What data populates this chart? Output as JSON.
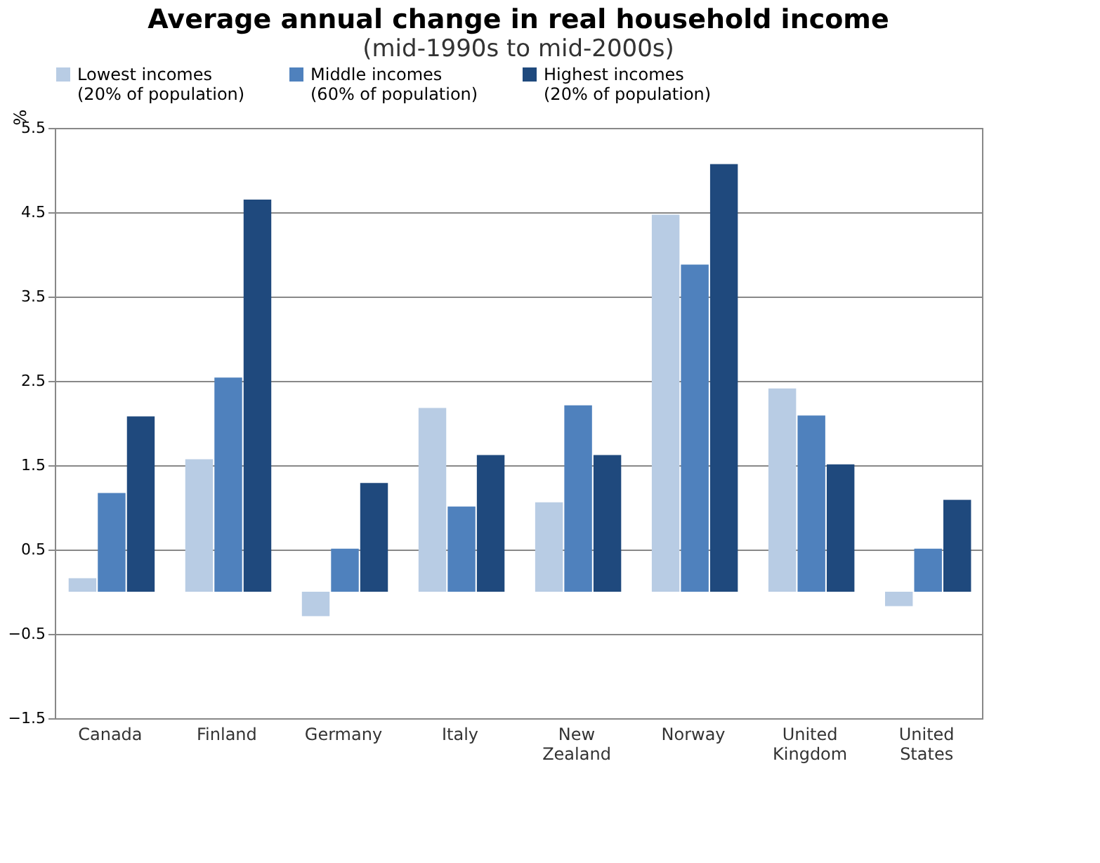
{
  "chart_data": {
    "type": "bar",
    "title": "Average annual change in real household income",
    "subtitle": "(mid-1990s to mid-2000s)",
    "ylabel": "%",
    "categories": [
      "Canada",
      "Finland",
      "Germany",
      "Italy",
      "New Zealand",
      "Norway",
      "United Kingdom",
      "United States"
    ],
    "series": [
      {
        "name": "Lowest incomes (20% of population)",
        "color": "#b8cce4",
        "values": [
          0.16,
          1.57,
          -0.29,
          2.18,
          1.06,
          4.47,
          2.41,
          -0.17
        ]
      },
      {
        "name": "Middle incomes (60% of population)",
        "color": "#4f81bd",
        "values": [
          1.17,
          2.54,
          0.51,
          1.01,
          2.21,
          3.88,
          2.09,
          0.51
        ]
      },
      {
        "name": "Highest incomes (20% of population)",
        "color": "#1f497d",
        "values": [
          2.08,
          4.65,
          1.29,
          1.62,
          1.62,
          5.07,
          1.51,
          1.09
        ]
      }
    ],
    "ylim": [
      -1.5,
      5.5
    ],
    "yticks": [
      -1.5,
      -0.5,
      0.5,
      1.5,
      2.5,
      3.5,
      4.5,
      5.5
    ],
    "grid": "y",
    "legend": "top"
  }
}
